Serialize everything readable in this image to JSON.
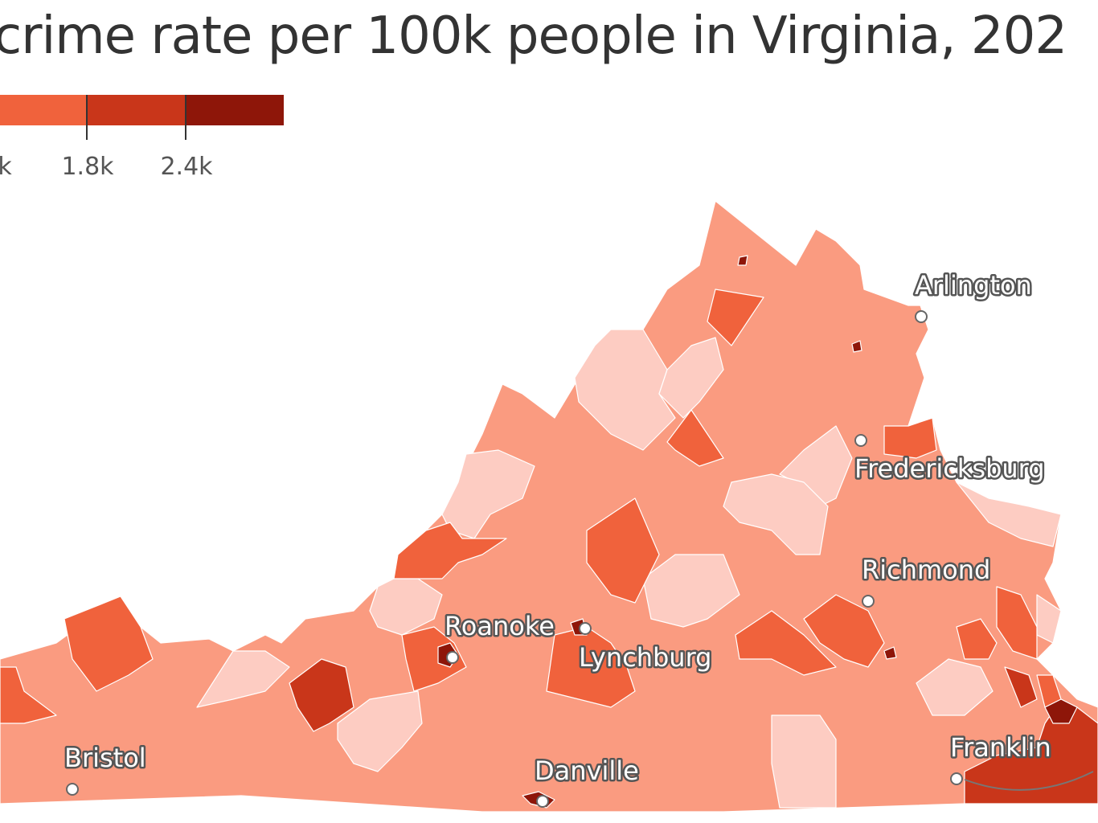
{
  "title": "crime rate per 100k people in Virginia, 202",
  "legend": {
    "colors": [
      "#f0623c",
      "#c9361a",
      "#8e1609"
    ],
    "ticks": [
      "k",
      "1.8k",
      "2.4k"
    ]
  },
  "palette": {
    "lightest": "#fdccc2",
    "light": "#fa9b80",
    "medium": "#f0623c",
    "dark": "#c9361a",
    "darkest": "#8e1609",
    "border": "#ffffff"
  },
  "cities": [
    {
      "name": "Arlington"
    },
    {
      "name": "Fredericksburg"
    },
    {
      "name": "Richmond"
    },
    {
      "name": "Roanoke"
    },
    {
      "name": "Lynchburg"
    },
    {
      "name": "Bristol"
    },
    {
      "name": "Danville"
    },
    {
      "name": "Franklin"
    }
  ]
}
